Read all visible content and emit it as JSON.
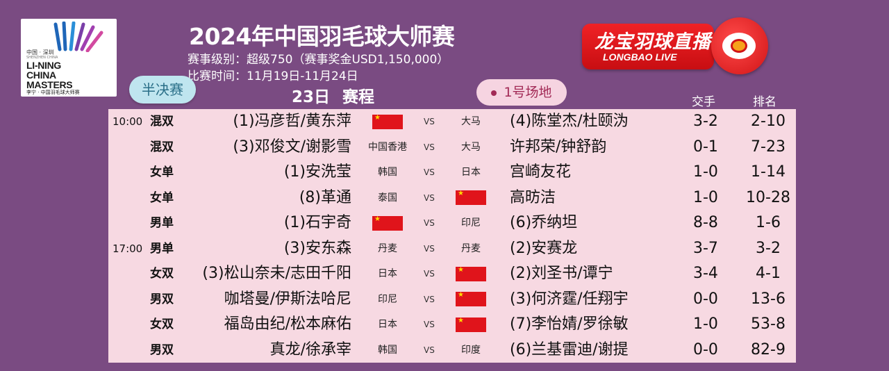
{
  "logo": {
    "city": "中国 · 深圳",
    "city_en": "SHENZHEN CHINA",
    "line1": "LI-NING",
    "line2": "CHINA",
    "line3": "MASTERS",
    "cn": "李宁 · 中国羽毛球大师赛"
  },
  "header": {
    "title": "2024年中国羽毛球大师赛",
    "level": "赛事级别：超级750（赛事奖金USD1,150,000）",
    "dates": "比赛时间：11月19日-11月24日"
  },
  "badge": {
    "cn": "龙宝羽球直播",
    "en": "LONGBAO LIVE"
  },
  "round_label": "半决赛",
  "court_label": "1号场地",
  "day": "23日",
  "schedule_label": "赛程",
  "columns": {
    "h2h": "交手",
    "rank": "排名"
  },
  "colors": {
    "background": "#7a4b82",
    "table": "#f7d9e2",
    "badge": "#e0141b"
  },
  "matches": [
    {
      "time": "10:00",
      "event": "混双",
      "left": "(1)冯彦哲/黄东萍",
      "left_country": "flag",
      "vs": "VS",
      "right_country": "大马",
      "right": "(4)陈堂杰/杜颐沩",
      "h2h": "3-2",
      "rank": "2-10"
    },
    {
      "time": "",
      "event": "混双",
      "left": "(3)邓俊文/谢影雪",
      "left_country": "中国香港",
      "vs": "VS",
      "right_country": "大马",
      "right": "许邦荣/钟舒韵",
      "h2h": "0-1",
      "rank": "7-23"
    },
    {
      "time": "",
      "event": "女单",
      "left": "(1)安洗莹",
      "left_country": "韩国",
      "vs": "VS",
      "right_country": "日本",
      "right": "宫崎友花",
      "h2h": "1-0",
      "rank": "1-14"
    },
    {
      "time": "",
      "event": "女单",
      "left": "(8)革通",
      "left_country": "泰国",
      "vs": "VS",
      "right_country": "flag",
      "right": "高昉洁",
      "h2h": "1-0",
      "rank": "10-28"
    },
    {
      "time": "",
      "event": "男单",
      "left": "(1)石宇奇",
      "left_country": "flag",
      "vs": "VS",
      "right_country": "印尼",
      "right": "(6)乔纳坦",
      "h2h": "8-8",
      "rank": "1-6"
    },
    {
      "time": "17:00",
      "event": "男单",
      "left": "(3)安东森",
      "left_country": "丹麦",
      "vs": "VS",
      "right_country": "丹麦",
      "right": "(2)安赛龙",
      "h2h": "3-7",
      "rank": "3-2"
    },
    {
      "time": "",
      "event": "女双",
      "left": "(3)松山奈未/志田千阳",
      "left_country": "日本",
      "vs": "VS",
      "right_country": "flag",
      "right": "(2)刘圣书/谭宁",
      "h2h": "3-4",
      "rank": "4-1"
    },
    {
      "time": "",
      "event": "男双",
      "left": "咖塔曼/伊斯法哈尼",
      "left_country": "印尼",
      "vs": "VS",
      "right_country": "flag",
      "right": "(3)何济霆/任翔宇",
      "h2h": "0-0",
      "rank": "13-6"
    },
    {
      "time": "",
      "event": "女双",
      "left": "福岛由纪/松本麻佑",
      "left_country": "日本",
      "vs": "VS",
      "right_country": "flag",
      "right": "(7)李怡婧/罗徐敏",
      "h2h": "1-0",
      "rank": "53-8"
    },
    {
      "time": "",
      "event": "男双",
      "left": "真龙/徐承宰",
      "left_country": "韩国",
      "vs": "VS",
      "right_country": "印度",
      "right": "(6)兰基雷迪/谢提",
      "h2h": "0-0",
      "rank": "82-9"
    }
  ]
}
